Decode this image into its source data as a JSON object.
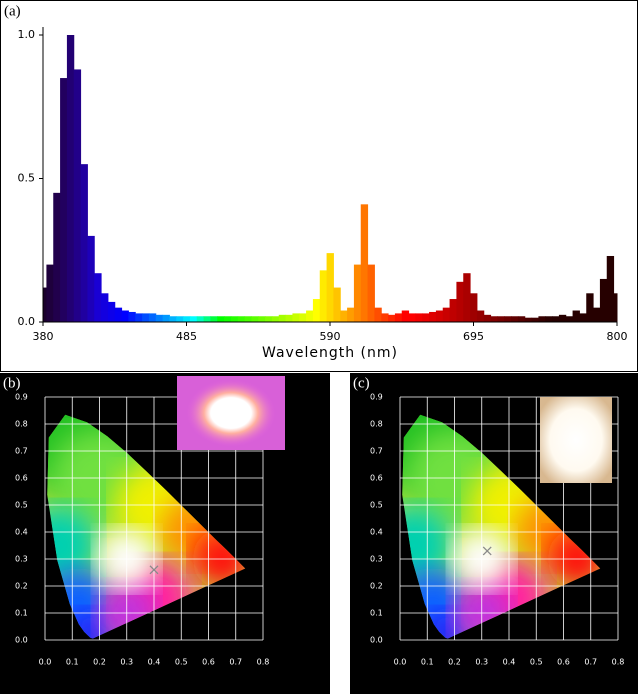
{
  "chart_data": [
    {
      "type": "bar",
      "label": "(a)",
      "xlabel": "Wavelength (nm)",
      "x": [
        380,
        385,
        390,
        395,
        400,
        405,
        410,
        415,
        420,
        425,
        430,
        435,
        440,
        445,
        450,
        455,
        460,
        465,
        470,
        475,
        480,
        485,
        490,
        495,
        500,
        505,
        510,
        515,
        520,
        525,
        530,
        535,
        540,
        545,
        550,
        555,
        560,
        565,
        570,
        575,
        580,
        585,
        590,
        595,
        600,
        605,
        610,
        615,
        620,
        625,
        630,
        635,
        640,
        645,
        650,
        655,
        660,
        665,
        670,
        675,
        680,
        685,
        690,
        695,
        700,
        705,
        710,
        715,
        720,
        725,
        730,
        735,
        740,
        745,
        750,
        755,
        760,
        765,
        770,
        775,
        780,
        785,
        790,
        795,
        800
      ],
      "values": [
        0.12,
        0.2,
        0.45,
        0.85,
        1.0,
        0.88,
        0.55,
        0.3,
        0.17,
        0.1,
        0.07,
        0.05,
        0.04,
        0.035,
        0.03,
        0.03,
        0.03,
        0.025,
        0.025,
        0.02,
        0.02,
        0.02,
        0.02,
        0.02,
        0.02,
        0.02,
        0.02,
        0.02,
        0.02,
        0.02,
        0.02,
        0.02,
        0.02,
        0.02,
        0.02,
        0.025,
        0.025,
        0.03,
        0.03,
        0.04,
        0.08,
        0.18,
        0.24,
        0.12,
        0.04,
        0.05,
        0.2,
        0.41,
        0.2,
        0.05,
        0.03,
        0.025,
        0.03,
        0.04,
        0.03,
        0.03,
        0.03,
        0.035,
        0.04,
        0.05,
        0.08,
        0.14,
        0.17,
        0.1,
        0.04,
        0.025,
        0.02,
        0.02,
        0.02,
        0.02,
        0.02,
        0.015,
        0.015,
        0.02,
        0.02,
        0.02,
        0.025,
        0.02,
        0.04,
        0.03,
        0.1,
        0.05,
        0.15,
        0.23,
        0.1
      ],
      "xlim": [
        380,
        800
      ],
      "xticks": [
        380,
        485,
        590,
        695,
        800
      ],
      "ylim": [
        0,
        1
      ],
      "yticks": [
        {
          "value": 0,
          "label": "0.0"
        },
        0.5,
        {
          "value": 1,
          "label": "1.0"
        }
      ]
    },
    {
      "type": "scatter",
      "label": "(b)",
      "x": [
        0.4
      ],
      "y": [
        0.26
      ],
      "color": "#8a8a8a",
      "xlim": [
        0,
        0.8
      ],
      "xticks": [
        {
          "value": 0,
          "label": "0.0"
        },
        0.1,
        0.2,
        0.3,
        0.4,
        0.5,
        0.6,
        0.7,
        0.8
      ],
      "ylim": [
        0,
        0.9
      ],
      "yticks": [
        {
          "value": 0,
          "label": "0.0"
        },
        0.1,
        0.2,
        0.3,
        0.4,
        0.5,
        0.6,
        0.7,
        0.8,
        0.9
      ],
      "grid": true
    },
    {
      "type": "scatter",
      "label": "(c)",
      "x": [
        0.32
      ],
      "y": [
        0.33
      ],
      "color": "#8a8a8a",
      "xlim": [
        0,
        0.8
      ],
      "xticks": [
        {
          "value": 0,
          "label": "0.0"
        },
        0.1,
        0.2,
        0.3,
        0.4,
        0.5,
        0.6,
        0.7,
        0.8
      ],
      "ylim": [
        0,
        0.9
      ],
      "yticks": [
        {
          "value": 0,
          "label": "0.0"
        },
        0.1,
        0.2,
        0.3,
        0.4,
        0.5,
        0.6,
        0.7,
        0.8,
        0.9
      ],
      "grid": true
    }
  ]
}
